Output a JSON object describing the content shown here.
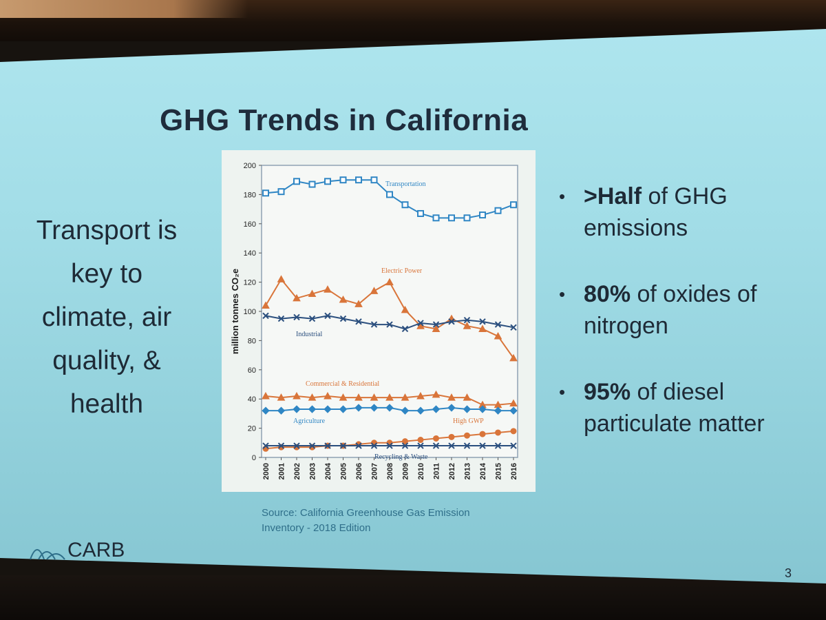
{
  "slide": {
    "title": "GHG Trends in California",
    "left_text": [
      "Transport is",
      "key to",
      "climate, air",
      "quality, &",
      "health"
    ],
    "bullets": [
      {
        "bold": ">Half",
        "line1_rest": " of GHG",
        "line2": "emissions"
      },
      {
        "bold": "80%",
        "line1_rest": " of oxides of",
        "line2": "nitrogen"
      },
      {
        "bold": "95%",
        "line1_rest": " of diesel",
        "line2": "particulate matter"
      }
    ],
    "bullet_glyph": "•",
    "source": [
      "Source: California Greenhouse Gas Emission",
      "Inventory - 2018 Edition"
    ],
    "brand": "CARB",
    "page_number": "3"
  },
  "colors": {
    "blue": "#2f86c4",
    "orange": "#d9753a",
    "navy": "#2b4f7e"
  },
  "chart_data": {
    "type": "line",
    "ylabel": "million tonnes CO₂e",
    "ylim": [
      0,
      200
    ],
    "yticks": [
      0,
      20,
      40,
      60,
      80,
      100,
      120,
      140,
      160,
      180,
      200
    ],
    "x": [
      "2000",
      "2001",
      "2002",
      "2003",
      "2004",
      "2005",
      "2006",
      "2007",
      "2008",
      "2009",
      "2010",
      "2011",
      "2012",
      "2013",
      "2014",
      "2015",
      "2016"
    ],
    "series": [
      {
        "name": "Transportation",
        "color": "#2f86c4",
        "marker": "square",
        "values": [
          181,
          182,
          189,
          187,
          189,
          190,
          190,
          190,
          180,
          173,
          167,
          164,
          164,
          164,
          166,
          169,
          173
        ]
      },
      {
        "name": "Electric Power",
        "color": "#d9753a",
        "marker": "triangle",
        "values": [
          104,
          122,
          109,
          112,
          115,
          108,
          105,
          114,
          120,
          101,
          90,
          88,
          95,
          90,
          88,
          83,
          68
        ]
      },
      {
        "name": "Industrial",
        "color": "#2b4f7e",
        "marker": "x",
        "values": [
          97,
          95,
          96,
          95,
          97,
          95,
          93,
          91,
          91,
          88,
          92,
          91,
          93,
          94,
          93,
          91,
          89
        ]
      },
      {
        "name": "Commercial & Residential",
        "color": "#d9753a",
        "marker": "triangle",
        "values": [
          42,
          41,
          42,
          41,
          42,
          41,
          41,
          41,
          41,
          41,
          42,
          43,
          41,
          41,
          36,
          36,
          37
        ]
      },
      {
        "name": "Agriculture",
        "color": "#2f86c4",
        "marker": "diamond",
        "values": [
          32,
          32,
          33,
          33,
          33,
          33,
          34,
          34,
          34,
          32,
          32,
          33,
          34,
          33,
          33,
          32,
          32
        ]
      },
      {
        "name": "High GWP",
        "color": "#d9753a",
        "marker": "circle",
        "values": [
          6,
          7,
          7,
          7,
          8,
          8,
          9,
          10,
          10,
          11,
          12,
          13,
          14,
          15,
          16,
          17,
          18
        ]
      },
      {
        "name": "Recycling & Waste",
        "color": "#2b4f7e",
        "marker": "x",
        "values": [
          8,
          8,
          8,
          8,
          8,
          8,
          8,
          8,
          8,
          8,
          8,
          8,
          8,
          8,
          8,
          8,
          8
        ]
      }
    ],
    "grid": false
  }
}
